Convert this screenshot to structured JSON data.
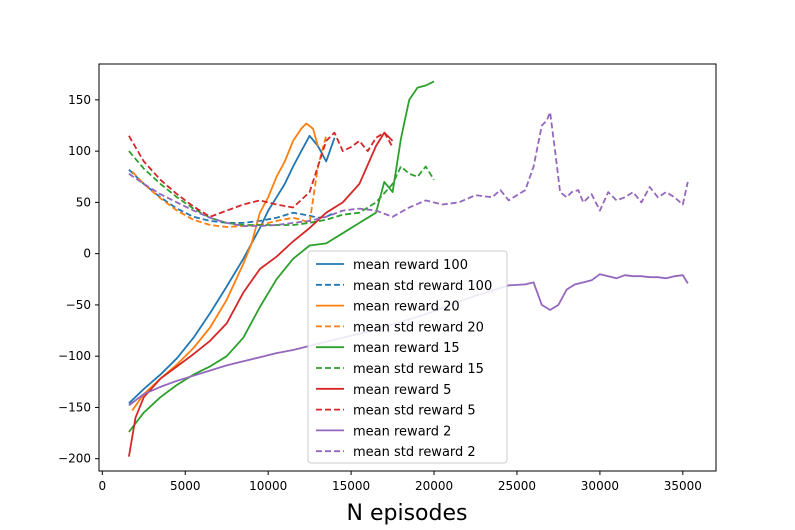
{
  "chart_data": {
    "type": "line",
    "title": "",
    "xlabel": "N episodes",
    "ylabel": "",
    "xlim": [
      -200,
      37000
    ],
    "ylim": [
      -212,
      185
    ],
    "xticks": [
      0,
      5000,
      10000,
      15000,
      20000,
      25000,
      30000,
      35000
    ],
    "yticks": [
      -200,
      -150,
      -100,
      -50,
      0,
      50,
      100,
      150
    ],
    "grid": false,
    "legend_position": "lower center",
    "series": [
      {
        "name": "mean reward 100",
        "color": "#1f77b4",
        "style": "solid",
        "x": [
          1600,
          2500,
          3500,
          4500,
          5500,
          6500,
          7500,
          8500,
          9500,
          10000,
          10500,
          11000,
          11500,
          12000,
          12500,
          13000,
          13500,
          14000
        ],
        "y": [
          -146,
          -132,
          -118,
          -102,
          -82,
          -58,
          -32,
          -5,
          25,
          42,
          55,
          68,
          85,
          100,
          115,
          105,
          90,
          113
        ]
      },
      {
        "name": "mean std reward 100",
        "color": "#1f77b4",
        "style": "dashed",
        "x": [
          1600,
          2500,
          3500,
          4500,
          5500,
          6500,
          7500,
          8500,
          9500,
          10500,
          11500,
          12500,
          13000,
          13500,
          14000
        ],
        "y": [
          82,
          68,
          55,
          44,
          36,
          32,
          30,
          30,
          32,
          35,
          40,
          37,
          35,
          36,
          40
        ]
      },
      {
        "name": "mean reward 20",
        "color": "#ff7f0e",
        "style": "solid",
        "x": [
          1800,
          2500,
          3500,
          4500,
          5500,
          6500,
          7500,
          8500,
          9000,
          9500,
          10000,
          10500,
          11000,
          11500,
          12000,
          12300,
          12700,
          13000
        ],
        "y": [
          -153,
          -137,
          -122,
          -108,
          -92,
          -72,
          -45,
          -10,
          10,
          40,
          55,
          75,
          90,
          110,
          122,
          127,
          122,
          105
        ]
      },
      {
        "name": "mean std reward 20",
        "color": "#ff7f0e",
        "style": "dashed",
        "x": [
          1800,
          2500,
          3500,
          4500,
          5500,
          6500,
          7500,
          8500,
          9500,
          10500,
          11500,
          12000,
          12500,
          13000,
          13500
        ],
        "y": [
          80,
          68,
          54,
          42,
          33,
          28,
          26,
          27,
          28,
          32,
          35,
          33,
          30,
          85,
          115
        ]
      },
      {
        "name": "mean reward 15",
        "color": "#2ca02c",
        "style": "solid",
        "x": [
          1600,
          2500,
          3500,
          4500,
          5500,
          6500,
          7500,
          8500,
          9500,
          10500,
          11500,
          12500,
          13500,
          14500,
          15500,
          16500,
          17000,
          17500,
          18000,
          18500,
          19000,
          19500,
          20000
        ],
        "y": [
          -174,
          -155,
          -140,
          -128,
          -118,
          -110,
          -100,
          -82,
          -52,
          -25,
          -5,
          8,
          10,
          20,
          30,
          40,
          70,
          60,
          112,
          150,
          162,
          164,
          168
        ]
      },
      {
        "name": "mean std reward 15",
        "color": "#2ca02c",
        "style": "dashed",
        "x": [
          1600,
          2500,
          3500,
          4500,
          5500,
          6500,
          7500,
          8500,
          9500,
          10500,
          11500,
          12500,
          13500,
          14500,
          15500,
          16500,
          17500,
          18000,
          18500,
          19000,
          19500,
          20000
        ],
        "y": [
          100,
          83,
          68,
          55,
          44,
          35,
          30,
          28,
          28,
          28,
          28,
          30,
          33,
          38,
          40,
          50,
          68,
          85,
          78,
          75,
          85,
          72
        ]
      },
      {
        "name": "mean reward 5",
        "color": "#d62728",
        "style": "solid",
        "x": [
          1600,
          2000,
          2500,
          3500,
          4500,
          5500,
          6500,
          7500,
          8500,
          9500,
          10500,
          11500,
          12500,
          13500,
          14500,
          15500,
          16500,
          17000,
          17500
        ],
        "y": [
          -198,
          -160,
          -140,
          -122,
          -110,
          -98,
          -85,
          -68,
          -38,
          -15,
          -3,
          12,
          25,
          40,
          50,
          68,
          105,
          118,
          110
        ]
      },
      {
        "name": "mean std reward 5",
        "color": "#d62728",
        "style": "dashed",
        "x": [
          1600,
          2500,
          3500,
          4500,
          5500,
          6500,
          7500,
          8500,
          9500,
          10500,
          11500,
          12500,
          13500,
          14000,
          14500,
          15000,
          15500,
          16000,
          16500,
          17000,
          17500
        ],
        "y": [
          115,
          90,
          72,
          58,
          46,
          36,
          42,
          48,
          52,
          48,
          45,
          60,
          110,
          118,
          100,
          104,
          110,
          100,
          113,
          118,
          104
        ]
      },
      {
        "name": "mean reward 2",
        "color": "#9467bd",
        "style": "solid",
        "x": [
          1600,
          2500,
          3500,
          4500,
          5500,
          6500,
          7500,
          8500,
          9500,
          10500,
          11500,
          12500,
          13500,
          14500,
          15500,
          16500,
          17500,
          18500,
          19500,
          20500,
          21500,
          22500,
          23500,
          24500,
          25500,
          26000,
          26500,
          27000,
          27500,
          28000,
          28500,
          29000,
          29500,
          30000,
          30500,
          31000,
          31500,
          32000,
          32500,
          33000,
          33500,
          34000,
          34500,
          35000,
          35300
        ],
        "y": [
          -148,
          -137,
          -130,
          -124,
          -119,
          -114,
          -109,
          -105,
          -101,
          -97,
          -94,
          -90,
          -86,
          -82,
          -78,
          -74,
          -69,
          -64,
          -59,
          -53,
          -47,
          -41,
          -36,
          -31,
          -30,
          -28,
          -50,
          -55,
          -50,
          -35,
          -30,
          -28,
          -26,
          -20,
          -22,
          -24,
          -21,
          -22,
          -22,
          -23,
          -23,
          -24,
          -22,
          -21,
          -29
        ]
      },
      {
        "name": "mean std reward 2",
        "color": "#9467bd",
        "style": "dashed",
        "x": [
          1600,
          2500,
          3500,
          4500,
          5500,
          6500,
          7500,
          8500,
          9500,
          10500,
          11500,
          12500,
          13500,
          14500,
          15500,
          16500,
          17500,
          18500,
          19500,
          20500,
          21500,
          22500,
          23500,
          24000,
          24500,
          25000,
          25500,
          26000,
          26500,
          26800,
          27000,
          27300,
          27600,
          28000,
          28300,
          28700,
          29000,
          29500,
          30000,
          30500,
          31000,
          31500,
          32000,
          32500,
          33000,
          33500,
          34000,
          34500,
          35000,
          35300
        ],
        "y": [
          78,
          68,
          58,
          50,
          42,
          35,
          30,
          27,
          27,
          28,
          30,
          32,
          36,
          42,
          44,
          42,
          36,
          45,
          52,
          48,
          50,
          57,
          55,
          62,
          52,
          57,
          62,
          85,
          125,
          130,
          138,
          100,
          60,
          55,
          60,
          62,
          50,
          58,
          42,
          60,
          52,
          55,
          60,
          50,
          65,
          55,
          60,
          55,
          48,
          70
        ]
      }
    ]
  }
}
